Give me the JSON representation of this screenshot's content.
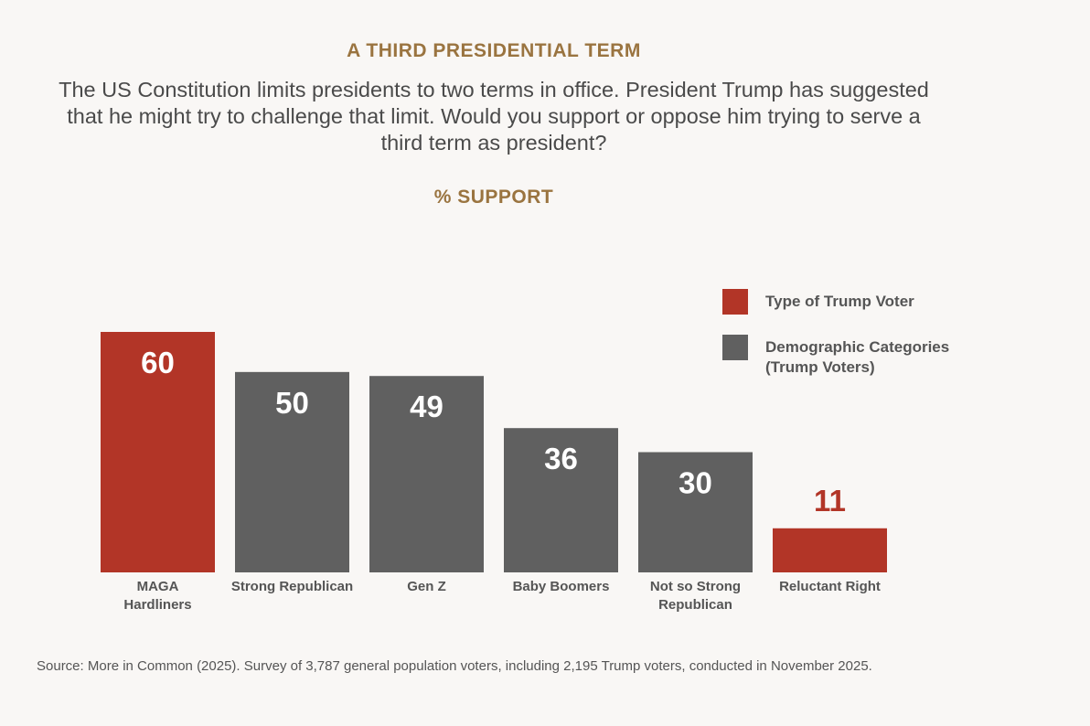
{
  "header": {
    "kicker": "A THIRD PRESIDENTIAL TERM",
    "question": "The US Constitution limits presidents to two terms in office. President Trump has suggested that he might try to challenge that limit. Would you support or oppose him trying to serve a third term as president?",
    "metric": "% SUPPORT"
  },
  "legend": {
    "items": [
      {
        "label": "Type of Trump Voter",
        "color": "#b23527"
      },
      {
        "label": "Demographic Categories (Trump Voters)",
        "color": "#606060"
      }
    ]
  },
  "colors": {
    "trump_voter_type": "#b23527",
    "demographic": "#606060",
    "inside_label": "#ffffff",
    "outside_label": "#b23527"
  },
  "chart_data": {
    "type": "bar",
    "title": "% SUPPORT",
    "categories": [
      [
        "MAGA",
        "Hardliners"
      ],
      [
        "Strong Republican"
      ],
      [
        "Gen Z"
      ],
      [
        "Baby Boomers"
      ],
      [
        "Not so Strong",
        "Republican"
      ],
      [
        "Reluctant Right"
      ]
    ],
    "values": [
      60,
      50,
      49,
      36,
      30,
      11
    ],
    "groups": [
      "Type of Trump Voter",
      "Demographic Categories (Trump Voters)",
      "Demographic Categories (Trump Voters)",
      "Demographic Categories (Trump Voters)",
      "Demographic Categories (Trump Voters)",
      "Type of Trump Voter"
    ],
    "xlabel": "",
    "ylabel": "",
    "ylim": [
      0,
      60
    ],
    "grid": false,
    "legend_position": "top-right",
    "data_labels": true
  },
  "source": "Source: More in Common (2025). Survey of 3,787 general population voters, including 2,195 Trump voters, conducted in November 2025."
}
